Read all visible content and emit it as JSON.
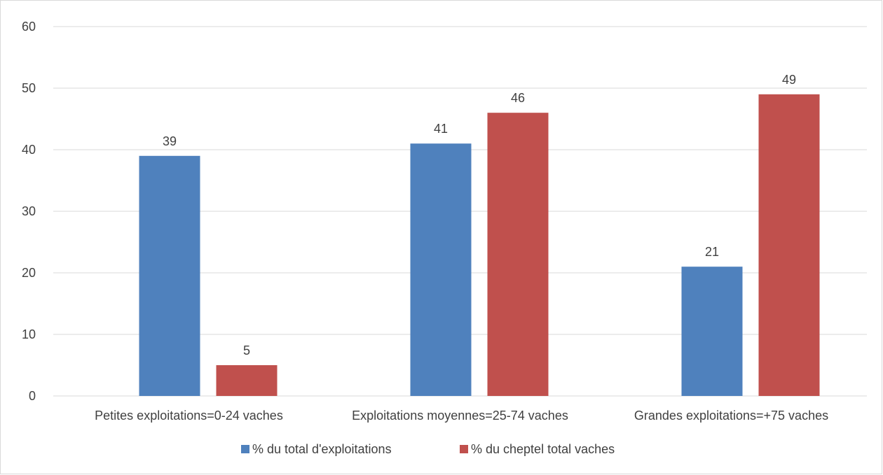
{
  "chart_data": {
    "type": "bar",
    "categories": [
      "Petites exploitations=0-24 vaches",
      "Exploitations moyennes=25-74 vaches",
      "Grandes exploitations=+75 vaches"
    ],
    "series": [
      {
        "name": "% du total d'exploitations",
        "values": [
          39,
          41,
          21
        ],
        "color": "#4f81bd"
      },
      {
        "name": "% du cheptel total vaches",
        "values": [
          5,
          46,
          49
        ],
        "color": "#c0504d"
      }
    ],
    "yticks": [
      "0",
      "10",
      "20",
      "30",
      "40",
      "50",
      "60"
    ],
    "ylim": [
      0,
      60
    ],
    "grid": true,
    "data_labels": true,
    "legend_position": "bottom"
  }
}
